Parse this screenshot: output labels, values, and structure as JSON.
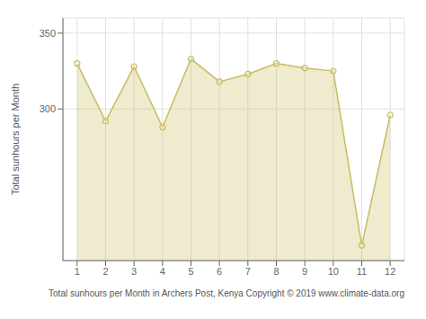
{
  "chart_data": {
    "type": "area",
    "x": [
      1,
      2,
      3,
      4,
      5,
      6,
      7,
      8,
      9,
      10,
      11,
      12
    ],
    "values": [
      330,
      292,
      328,
      288,
      333,
      318,
      323,
      330,
      327,
      325,
      210,
      296
    ],
    "xlabel": "Total sunhours per Month in Archers Post, Kenya Copyright © 2019 www.climate-data.org",
    "ylabel": "Total sunhours per Month",
    "xlim": [
      0.5,
      12.5
    ],
    "ylim": [
      200,
      360
    ],
    "xticks": [
      1,
      2,
      3,
      4,
      5,
      6,
      7,
      8,
      9,
      10,
      11,
      12
    ],
    "yticks": [
      300,
      350
    ],
    "grid": true,
    "color": "#c8bc60",
    "marker": "circle"
  }
}
